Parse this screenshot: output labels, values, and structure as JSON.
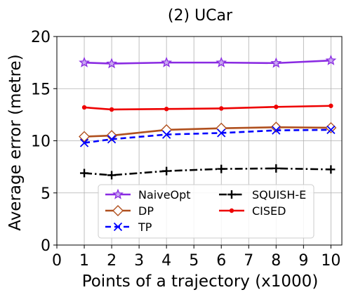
{
  "chart_data": {
    "type": "line",
    "title": "(2) UCar",
    "xlabel": "Points of a trajectory (x1000)",
    "ylabel": "Average error (metre)",
    "xlim": [
      0,
      10.4
    ],
    "ylim": [
      0,
      20
    ],
    "xticks": [
      0,
      1,
      2,
      3,
      4,
      5,
      6,
      7,
      8,
      9,
      10
    ],
    "yticks": [
      0,
      5,
      10,
      15,
      20
    ],
    "grid": true,
    "legend_position": "lower-center",
    "x": [
      1,
      2,
      4,
      6,
      8,
      10
    ],
    "series": [
      {
        "name": "NaiveOpt",
        "values": [
          17.5,
          17.4,
          17.5,
          17.5,
          17.45,
          17.7
        ],
        "color": "#8a2be2",
        "dash": "solid",
        "marker": "star"
      },
      {
        "name": "DP",
        "values": [
          10.4,
          10.5,
          11.05,
          11.2,
          11.3,
          11.25
        ],
        "color": "#b0501e",
        "dash": "solid",
        "marker": "diamond"
      },
      {
        "name": "TP",
        "values": [
          9.8,
          10.15,
          10.6,
          10.75,
          11.0,
          11.05
        ],
        "color": "#0000ff",
        "dash": "dashed",
        "marker": "x"
      },
      {
        "name": "SQUISH-E",
        "values": [
          6.9,
          6.7,
          7.1,
          7.3,
          7.35,
          7.25
        ],
        "color": "#000000",
        "dash": "dashdot",
        "marker": "plus"
      },
      {
        "name": "CISED",
        "values": [
          13.2,
          13.0,
          13.05,
          13.1,
          13.25,
          13.35
        ],
        "color": "#ee0000",
        "dash": "solid",
        "marker": "dot"
      }
    ]
  }
}
